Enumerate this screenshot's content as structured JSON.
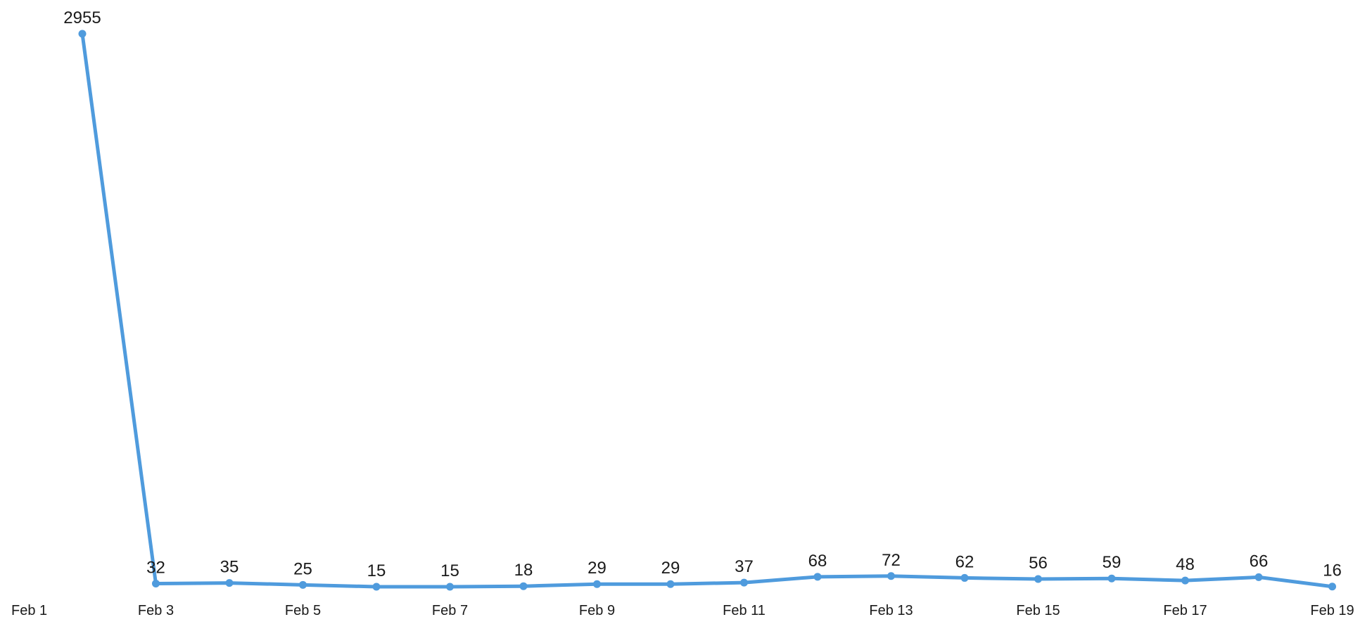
{
  "chart_data": {
    "type": "line",
    "title": "",
    "xlabel": "",
    "ylabel": "",
    "x": [
      "Feb 2",
      "Feb 3",
      "Feb 4",
      "Feb 5",
      "Feb 6",
      "Feb 7",
      "Feb 8",
      "Feb 9",
      "Feb 10",
      "Feb 11",
      "Feb 12",
      "Feb 13",
      "Feb 14",
      "Feb 15",
      "Feb 16",
      "Feb 17",
      "Feb 18",
      "Feb 19"
    ],
    "values": [
      2955,
      32,
      35,
      25,
      15,
      15,
      18,
      29,
      29,
      37,
      68,
      72,
      62,
      56,
      59,
      48,
      66,
      16
    ],
    "x_tick_labels": [
      "Feb 1",
      "Feb 3",
      "Feb 5",
      "Feb 7",
      "Feb 9",
      "Feb 11",
      "Feb 13",
      "Feb 15",
      "Feb 17",
      "Feb 19"
    ],
    "ylim": [
      0,
      2955
    ],
    "grid": false,
    "line_color": "#4f9bdd",
    "data_labels": true
  }
}
